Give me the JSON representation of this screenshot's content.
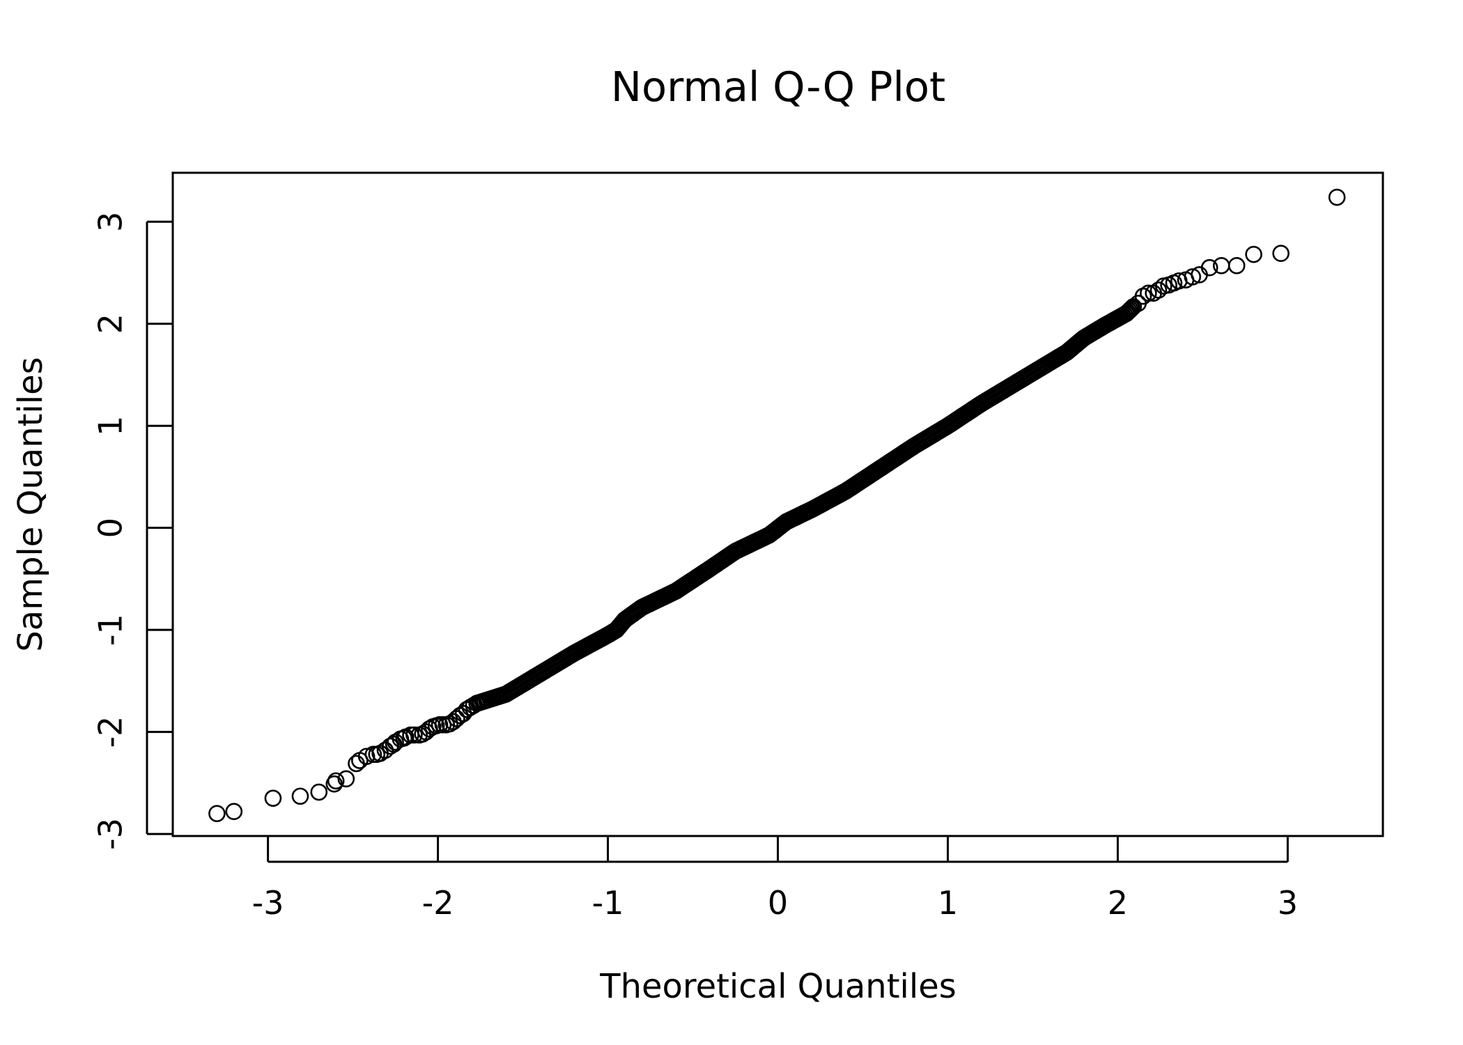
{
  "chart_data": {
    "type": "scatter",
    "title": "Normal Q-Q Plot",
    "xlabel": "Theoretical Quantiles",
    "ylabel": "Sample Quantiles",
    "xlim": [
      -3.56,
      3.56
    ],
    "ylim": [
      -3.02,
      3.48
    ],
    "x_ticks": [
      -3,
      -2,
      -1,
      0,
      1,
      2,
      3
    ],
    "y_ticks": [
      -3,
      -2,
      -1,
      0,
      1,
      2,
      3
    ],
    "x_tick_labels": [
      "-3",
      "-2",
      "-1",
      "0",
      "1",
      "2",
      "3"
    ],
    "y_tick_labels": [
      "-3",
      "-2",
      "-1",
      "0",
      "1",
      "2",
      "3"
    ],
    "grid": false,
    "legend": "none",
    "marker": "open-circle",
    "color": "#000000",
    "points": [
      [
        -3.3,
        -2.8
      ],
      [
        -2.97,
        -2.65
      ],
      [
        -2.81,
        -2.63
      ],
      [
        -2.7,
        -2.59
      ],
      [
        -2.61,
        -2.51
      ],
      [
        -2.54,
        -2.46
      ],
      [
        -2.48,
        -2.31
      ],
      [
        -2.42,
        -2.24
      ],
      [
        -2.38,
        -2.22
      ],
      [
        -2.34,
        -2.21
      ],
      [
        -2.31,
        -2.18
      ],
      [
        -2.28,
        -2.14
      ],
      [
        -2.25,
        -2.1
      ],
      [
        -2.22,
        -2.07
      ],
      [
        -2.19,
        -2.05
      ],
      [
        -2.16,
        -2.03
      ],
      [
        -2.14,
        -2.03
      ],
      [
        -2.11,
        -2.03
      ],
      [
        -2.09,
        -2.02
      ],
      [
        -2.07,
        -2.0
      ],
      [
        -2.05,
        -1.97
      ],
      [
        -2.03,
        -1.95
      ],
      [
        -2.01,
        -1.94
      ],
      [
        -1.99,
        -1.93
      ],
      [
        -1.97,
        -1.93
      ],
      [
        -1.95,
        -1.93
      ],
      [
        -1.93,
        -1.92
      ],
      [
        -1.91,
        -1.9
      ],
      [
        -1.89,
        -1.87
      ],
      [
        -1.87,
        -1.84
      ],
      [
        -1.85,
        -1.82
      ],
      [
        -1.83,
        -1.78
      ],
      [
        -1.81,
        -1.76
      ],
      [
        -1.79,
        -1.74
      ],
      [
        -1.77,
        -1.72
      ],
      [
        -2.6,
        -2.48
      ],
      [
        -2.46,
        -2.28
      ],
      [
        -2.36,
        -2.22
      ],
      [
        -2.26,
        -2.12
      ],
      [
        -2.2,
        -2.06
      ],
      [
        -3.2,
        -2.78
      ]
    ],
    "line_segment_model": {
      "description_free_fill": [
        [
          -1.77,
          -1.72
        ],
        [
          -1.6,
          -1.63
        ],
        [
          -1.4,
          -1.43
        ],
        [
          -1.2,
          -1.23
        ],
        [
          -1.0,
          -1.05
        ],
        [
          -0.95,
          -1.0
        ],
        [
          -0.9,
          -0.9
        ],
        [
          -0.8,
          -0.78
        ],
        [
          -0.6,
          -0.62
        ],
        [
          -0.4,
          -0.4
        ],
        [
          -0.25,
          -0.23
        ],
        [
          -0.15,
          -0.15
        ],
        [
          -0.05,
          -0.07
        ],
        [
          0.05,
          0.06
        ],
        [
          0.2,
          0.18
        ],
        [
          0.4,
          0.36
        ],
        [
          0.6,
          0.58
        ],
        [
          0.8,
          0.8
        ],
        [
          1.0,
          1.0
        ],
        [
          1.2,
          1.22
        ],
        [
          1.4,
          1.42
        ],
        [
          1.6,
          1.62
        ],
        [
          1.7,
          1.72
        ],
        [
          1.8,
          1.86
        ],
        [
          1.92,
          1.98
        ],
        [
          2.05,
          2.1
        ],
        [
          2.1,
          2.18
        ]
      ]
    },
    "upper_tail": [
      [
        2.12,
        2.2
      ],
      [
        2.15,
        2.27
      ],
      [
        2.18,
        2.3
      ],
      [
        2.21,
        2.3
      ],
      [
        2.24,
        2.33
      ],
      [
        2.27,
        2.37
      ],
      [
        2.3,
        2.38
      ],
      [
        2.33,
        2.4
      ],
      [
        2.36,
        2.42
      ],
      [
        2.4,
        2.43
      ],
      [
        2.44,
        2.46
      ],
      [
        2.48,
        2.48
      ],
      [
        2.54,
        2.55
      ],
      [
        2.61,
        2.57
      ],
      [
        2.7,
        2.57
      ],
      [
        2.8,
        2.68
      ],
      [
        2.96,
        2.69
      ],
      [
        3.29,
        3.24
      ]
    ]
  }
}
